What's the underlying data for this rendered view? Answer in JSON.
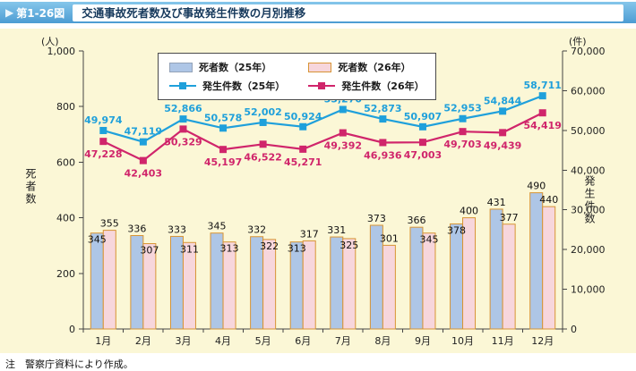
{
  "header": {
    "arrow_icon": "▶",
    "figure_label": "第1-26図",
    "title": "交通事故死者数及び事故発生件数の月別推移"
  },
  "note": "注　警察庁資料により作成。",
  "colors": {
    "panel_bg": "#FBF7D6",
    "axis": "#444444",
    "bar_label_text": "#111111"
  },
  "chart_data": {
    "type": "bar-line-combo",
    "categories": [
      "1月",
      "2月",
      "3月",
      "4月",
      "5月",
      "6月",
      "7月",
      "8月",
      "9月",
      "10月",
      "11月",
      "12月"
    ],
    "series": [
      {
        "name": "死者数（25年）",
        "type": "bar",
        "axis": "left",
        "fill": "#AEC6E6",
        "stroke": "#D79435",
        "legend_border": "#93A2B8",
        "values": [
          345,
          336,
          333,
          345,
          332,
          313,
          331,
          373,
          366,
          378,
          431,
          490
        ]
      },
      {
        "name": "死者数（26年）",
        "type": "bar",
        "axis": "left",
        "fill": "#F7D6DC",
        "stroke": "#D79435",
        "legend_border": "#D79435",
        "values": [
          355,
          307,
          311,
          313,
          322,
          317,
          325,
          301,
          345,
          400,
          377,
          440
        ]
      },
      {
        "name": "発生件数（25年）",
        "type": "line",
        "axis": "right",
        "color": "#1FA0DB",
        "values": [
          49974,
          47119,
          52866,
          50578,
          52002,
          50924,
          55270,
          52873,
          50907,
          52953,
          54844,
          58711
        ]
      },
      {
        "name": "発生件数（26年）",
        "type": "line",
        "axis": "right",
        "color": "#D0256B",
        "values": [
          47228,
          42403,
          50329,
          45197,
          46522,
          45271,
          49392,
          46936,
          47003,
          49703,
          49439,
          54419
        ]
      }
    ],
    "left_axis": {
      "unit": "(人)",
      "label": "死者数",
      "min": 0,
      "max": 1000,
      "tick_step": 200
    },
    "right_axis": {
      "unit": "(件)",
      "label": "発生件数",
      "min": 0,
      "max": 70000,
      "tick_step": 10000
    },
    "grid": false,
    "legend_position": "top-inside"
  }
}
